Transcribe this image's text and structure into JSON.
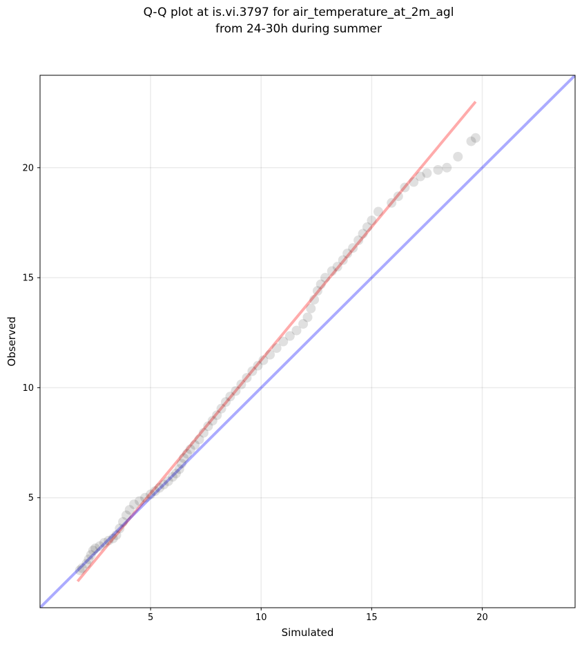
{
  "chart_data": {
    "type": "scatter",
    "title": "Q-Q plot at is.vi.3797 for air_temperature_at_2m_agl",
    "subtitle": "from 24-30h during summer",
    "xlabel": "Simulated",
    "ylabel": "Observed",
    "xlim": [
      0.0,
      24.2
    ],
    "ylim": [
      0.0,
      24.2
    ],
    "xticks": [
      5,
      10,
      15,
      20
    ],
    "yticks": [
      5,
      10,
      15,
      20
    ],
    "grid": true,
    "lines": [
      {
        "color": "#ff0000",
        "opacity": 0.33,
        "points": [
          [
            1.7,
            1.2
          ],
          [
            19.7,
            23.0
          ]
        ]
      },
      {
        "color": "#0000ff",
        "opacity": 0.33,
        "points": [
          [
            0.0,
            0.0
          ],
          [
            24.2,
            24.2
          ]
        ]
      }
    ],
    "points": [
      [
        1.8,
        1.7
      ],
      [
        1.9,
        1.8
      ],
      [
        2.1,
        2.0
      ],
      [
        2.2,
        2.2
      ],
      [
        2.3,
        2.4
      ],
      [
        2.4,
        2.6
      ],
      [
        2.5,
        2.7
      ],
      [
        2.7,
        2.8
      ],
      [
        2.9,
        2.95
      ],
      [
        3.1,
        3.05
      ],
      [
        3.3,
        3.15
      ],
      [
        3.45,
        3.3
      ],
      [
        3.6,
        3.6
      ],
      [
        3.75,
        3.9
      ],
      [
        3.9,
        4.2
      ],
      [
        4.05,
        4.45
      ],
      [
        4.25,
        4.7
      ],
      [
        4.5,
        4.85
      ],
      [
        4.75,
        5.0
      ],
      [
        5.0,
        5.15
      ],
      [
        5.2,
        5.3
      ],
      [
        5.4,
        5.45
      ],
      [
        5.6,
        5.6
      ],
      [
        5.8,
        5.75
      ],
      [
        6.0,
        5.95
      ],
      [
        6.15,
        6.1
      ],
      [
        6.3,
        6.3
      ],
      [
        6.4,
        6.55
      ],
      [
        6.5,
        6.8
      ],
      [
        6.65,
        7.0
      ],
      [
        6.8,
        7.2
      ],
      [
        7.0,
        7.4
      ],
      [
        7.2,
        7.65
      ],
      [
        7.4,
        7.95
      ],
      [
        7.6,
        8.25
      ],
      [
        7.8,
        8.5
      ],
      [
        8.0,
        8.75
      ],
      [
        8.2,
        9.05
      ],
      [
        8.4,
        9.35
      ],
      [
        8.6,
        9.6
      ],
      [
        8.85,
        9.85
      ],
      [
        9.1,
        10.15
      ],
      [
        9.35,
        10.45
      ],
      [
        9.6,
        10.75
      ],
      [
        9.85,
        11.0
      ],
      [
        10.1,
        11.25
      ],
      [
        10.4,
        11.5
      ],
      [
        10.7,
        11.8
      ],
      [
        11.0,
        12.1
      ],
      [
        11.3,
        12.35
      ],
      [
        11.6,
        12.6
      ],
      [
        11.9,
        12.9
      ],
      [
        12.1,
        13.2
      ],
      [
        12.25,
        13.6
      ],
      [
        12.4,
        14.0
      ],
      [
        12.55,
        14.4
      ],
      [
        12.7,
        14.7
      ],
      [
        12.9,
        15.0
      ],
      [
        13.2,
        15.3
      ],
      [
        13.45,
        15.5
      ],
      [
        13.7,
        15.8
      ],
      [
        13.9,
        16.1
      ],
      [
        14.15,
        16.35
      ],
      [
        14.4,
        16.7
      ],
      [
        14.6,
        17.0
      ],
      [
        14.8,
        17.3
      ],
      [
        15.0,
        17.6
      ],
      [
        15.3,
        18.0
      ],
      [
        15.9,
        18.4
      ],
      [
        16.2,
        18.7
      ],
      [
        16.5,
        19.1
      ],
      [
        16.9,
        19.35
      ],
      [
        17.2,
        19.6
      ],
      [
        17.5,
        19.75
      ],
      [
        18.0,
        19.9
      ],
      [
        18.4,
        20.0
      ],
      [
        18.9,
        20.5
      ],
      [
        19.5,
        21.2
      ],
      [
        19.7,
        21.35
      ]
    ]
  }
}
